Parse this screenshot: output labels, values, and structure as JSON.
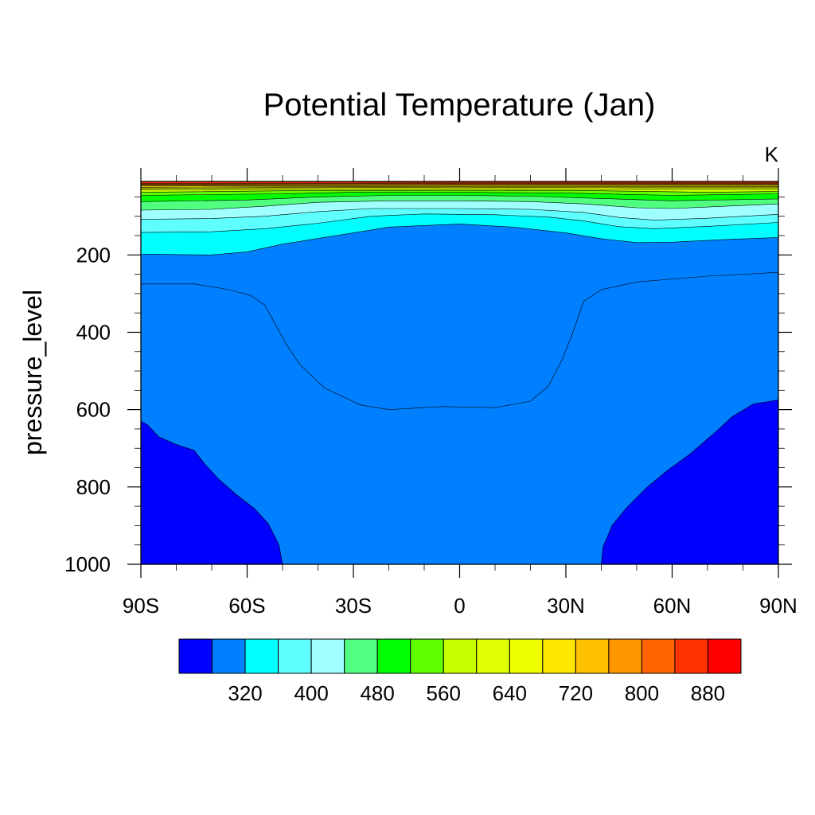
{
  "chart_data": {
    "type": "heatmap",
    "subtype": "filled-contour",
    "title": "Potential Temperature (Jan)",
    "units": "K",
    "ylabel": "pressure_level",
    "xlabel": "",
    "x": {
      "ticks": [
        -90,
        -60,
        -30,
        0,
        30,
        60,
        90
      ],
      "tick_labels": [
        "90S",
        "60S",
        "30S",
        "0",
        "30N",
        "60N",
        "90N"
      ],
      "range": [
        -90,
        90
      ]
    },
    "y": {
      "ticks": [
        200,
        400,
        600,
        800,
        1000
      ],
      "tick_labels": [
        "200",
        "400",
        "600",
        "800",
        "1000"
      ],
      "range": [
        1000,
        10
      ],
      "inverted": true
    },
    "colorbar": {
      "placement": "bottom",
      "levels": [
        280,
        320,
        360,
        400,
        440,
        480,
        520,
        560,
        600,
        640,
        680,
        720,
        760,
        800,
        840,
        880
      ],
      "labeled_levels": [
        320,
        400,
        480,
        560,
        640,
        720,
        800,
        880
      ],
      "label_text": [
        "320",
        "400",
        "480",
        "560",
        "640",
        "720",
        "800",
        "880"
      ],
      "colors": [
        "#0000ff",
        "#0080ff",
        "#00ffff",
        "#60ffff",
        "#a0ffff",
        "#50ff80",
        "#00ff00",
        "#60ff00",
        "#c8ff00",
        "#e0ff00",
        "#f0ff00",
        "#ffe800",
        "#ffc000",
        "#ff9600",
        "#ff6400",
        "#ff3200",
        "#ff0000"
      ]
    },
    "contour_regions": [
      {
        "band": "<280",
        "color_index": 0,
        "boundary": [
          [
            -90,
            630
          ],
          [
            -88,
            640
          ],
          [
            -85,
            670
          ],
          [
            -80,
            690
          ],
          [
            -75,
            705
          ],
          [
            -72,
            740
          ],
          [
            -68,
            780
          ],
          [
            -63,
            820
          ],
          [
            -58,
            855
          ],
          [
            -54,
            895
          ],
          [
            -51,
            950
          ],
          [
            -50,
            1000
          ],
          [
            -90,
            1000
          ]
        ]
      },
      {
        "band": "<280",
        "color_index": 0,
        "boundary": [
          [
            40,
            1000
          ],
          [
            40.5,
            955
          ],
          [
            43,
            900
          ],
          [
            47,
            855
          ],
          [
            53,
            800
          ],
          [
            59,
            755
          ],
          [
            65,
            715
          ],
          [
            72,
            660
          ],
          [
            77,
            618
          ],
          [
            83,
            585
          ],
          [
            90,
            575
          ],
          [
            90,
            1000
          ]
        ]
      },
      {
        "band": "280-320",
        "color_index": 1,
        "boundary": [
          [
            -90,
            275
          ],
          [
            -75,
            275
          ],
          [
            -65,
            290
          ],
          [
            -59,
            305
          ],
          [
            -55,
            330
          ],
          [
            -52,
            380
          ],
          [
            -49,
            430
          ],
          [
            -45,
            485
          ],
          [
            -38,
            545
          ],
          [
            -28,
            588
          ],
          [
            -20,
            600
          ],
          [
            -5,
            592
          ],
          [
            10,
            595
          ],
          [
            20,
            578
          ],
          [
            25,
            540
          ],
          [
            29,
            470
          ],
          [
            32,
            400
          ],
          [
            35,
            320
          ],
          [
            40,
            290
          ],
          [
            50,
            270
          ],
          [
            70,
            255
          ],
          [
            90,
            245
          ],
          [
            90,
            1000
          ],
          [
            -90,
            1000
          ]
        ]
      },
      {
        "band": "320-360",
        "color_index": 2,
        "boundary": [
          [
            -90,
            198
          ],
          [
            -70,
            200
          ],
          [
            -60,
            192
          ],
          [
            -50,
            172
          ],
          [
            -30,
            143
          ],
          [
            -20,
            128
          ],
          [
            0,
            120
          ],
          [
            15,
            128
          ],
          [
            30,
            143
          ],
          [
            40,
            158
          ],
          [
            50,
            168
          ],
          [
            60,
            167
          ],
          [
            75,
            160
          ],
          [
            90,
            155
          ],
          [
            90,
            10
          ],
          [
            -90,
            10
          ]
        ]
      },
      {
        "band": "360-400",
        "color_index": 3,
        "boundary": [
          [
            -90,
            142
          ],
          [
            -70,
            140
          ],
          [
            -55,
            132
          ],
          [
            -40,
            118
          ],
          [
            -25,
            100
          ],
          [
            -10,
            94
          ],
          [
            10,
            96
          ],
          [
            25,
            102
          ],
          [
            35,
            112
          ],
          [
            45,
            127
          ],
          [
            55,
            132
          ],
          [
            70,
            126
          ],
          [
            90,
            116
          ],
          [
            90,
            10
          ],
          [
            -90,
            10
          ]
        ]
      },
      {
        "band": "400-440",
        "color_index": 4,
        "boundary": [
          [
            -90,
            108
          ],
          [
            -70,
            106
          ],
          [
            -55,
            100
          ],
          [
            -40,
            88
          ],
          [
            -25,
            80
          ],
          [
            0,
            80
          ],
          [
            20,
            82
          ],
          [
            35,
            90
          ],
          [
            45,
            103
          ],
          [
            55,
            110
          ],
          [
            70,
            105
          ],
          [
            90,
            95
          ],
          [
            90,
            10
          ],
          [
            -90,
            10
          ]
        ]
      },
      {
        "band": "440-480",
        "color_index": 5,
        "boundary": [
          [
            -90,
            84
          ],
          [
            -70,
            82
          ],
          [
            -55,
            74
          ],
          [
            -40,
            64
          ],
          [
            -20,
            60
          ],
          [
            0,
            60
          ],
          [
            20,
            62
          ],
          [
            35,
            68
          ],
          [
            50,
            78
          ],
          [
            60,
            80
          ],
          [
            75,
            74
          ],
          [
            90,
            68
          ],
          [
            90,
            10
          ],
          [
            -90,
            10
          ]
        ]
      },
      {
        "band": "480-520",
        "color_index": 6,
        "boundary": [
          [
            -90,
            62
          ],
          [
            -60,
            58
          ],
          [
            -40,
            50
          ],
          [
            -20,
            46
          ],
          [
            0,
            46
          ],
          [
            20,
            48
          ],
          [
            40,
            54
          ],
          [
            60,
            60
          ],
          [
            90,
            55
          ],
          [
            90,
            10
          ],
          [
            -90,
            10
          ]
        ]
      },
      {
        "band": "520-560",
        "color_index": 7,
        "boundary": [
          [
            -90,
            46
          ],
          [
            -50,
            42
          ],
          [
            -30,
            38
          ],
          [
            0,
            38
          ],
          [
            30,
            40
          ],
          [
            60,
            46
          ],
          [
            90,
            42
          ],
          [
            90,
            10
          ],
          [
            -90,
            10
          ]
        ]
      },
      {
        "band": "560-600",
        "color_index": 8,
        "boundary": [
          [
            -90,
            38
          ],
          [
            -50,
            34
          ],
          [
            0,
            33
          ],
          [
            40,
            34
          ],
          [
            70,
            38
          ],
          [
            90,
            36
          ],
          [
            90,
            10
          ],
          [
            -90,
            10
          ]
        ]
      },
      {
        "band": "600-640",
        "color_index": 9,
        "boundary": [
          [
            -90,
            32
          ],
          [
            -50,
            30
          ],
          [
            0,
            29
          ],
          [
            50,
            30
          ],
          [
            90,
            30
          ],
          [
            90,
            10
          ],
          [
            -90,
            10
          ]
        ]
      },
      {
        "band": "640-680",
        "color_index": 10,
        "boundary": [
          [
            -90,
            28
          ],
          [
            -50,
            26
          ],
          [
            0,
            25.5
          ],
          [
            50,
            26
          ],
          [
            90,
            26
          ],
          [
            90,
            10
          ],
          [
            -90,
            10
          ]
        ]
      },
      {
        "band": "680-720",
        "color_index": 11,
        "boundary": [
          [
            -90,
            25
          ],
          [
            0,
            23
          ],
          [
            90,
            23
          ],
          [
            90,
            10
          ],
          [
            -90,
            10
          ]
        ]
      },
      {
        "band": "720-760",
        "color_index": 12,
        "boundary": [
          [
            -90,
            22
          ],
          [
            0,
            20.5
          ],
          [
            90,
            20.5
          ],
          [
            90,
            10
          ],
          [
            -90,
            10
          ]
        ]
      },
      {
        "band": "760-800",
        "color_index": 13,
        "boundary": [
          [
            -90,
            19.5
          ],
          [
            0,
            18
          ],
          [
            90,
            18
          ],
          [
            90,
            10
          ],
          [
            -90,
            10
          ]
        ]
      },
      {
        "band": "800-840",
        "color_index": 14,
        "boundary": [
          [
            -90,
            17
          ],
          [
            0,
            16
          ],
          [
            90,
            16
          ],
          [
            90,
            10
          ],
          [
            -90,
            10
          ]
        ]
      },
      {
        "band": "840-880",
        "color_index": 15,
        "boundary": [
          [
            -90,
            15
          ],
          [
            0,
            14
          ],
          [
            90,
            14
          ],
          [
            90,
            10
          ],
          [
            -90,
            10
          ]
        ]
      }
    ],
    "grid": false,
    "legend": "none"
  }
}
